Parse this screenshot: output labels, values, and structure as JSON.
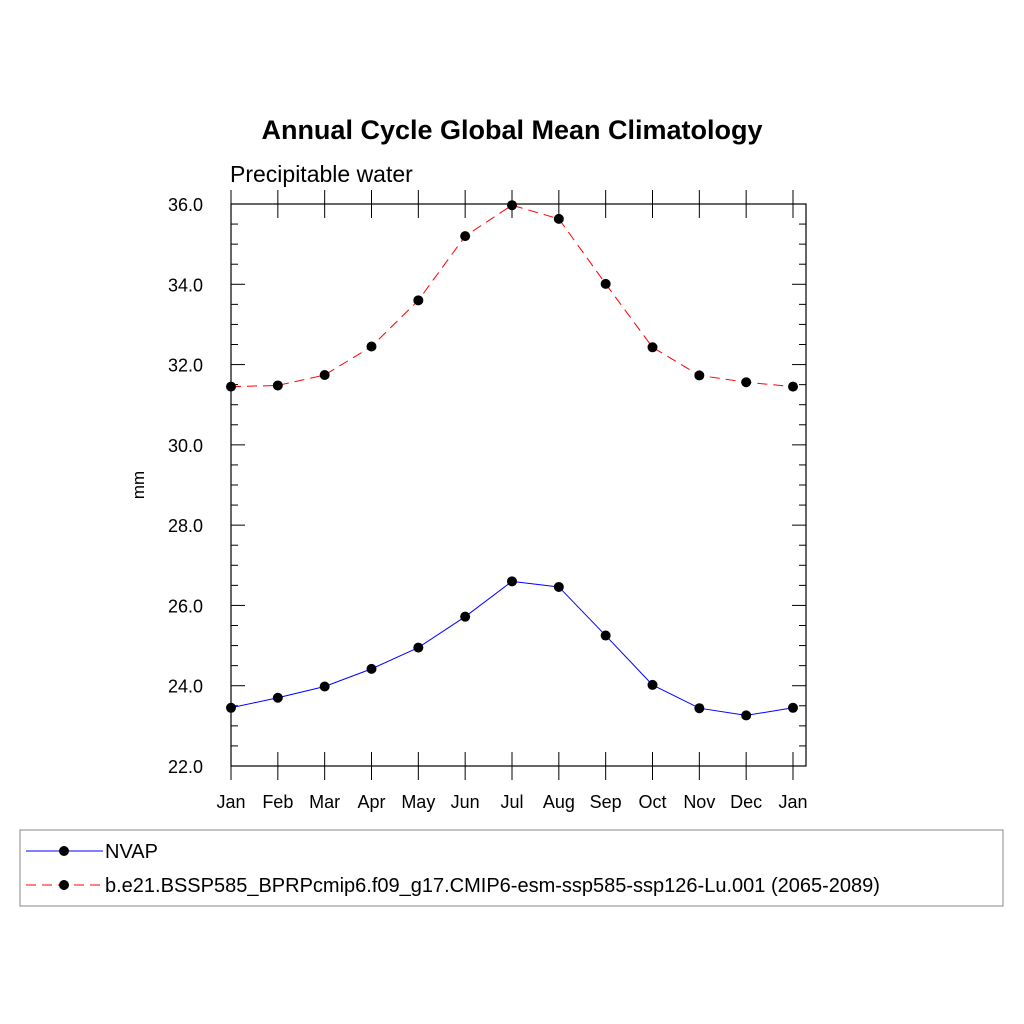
{
  "chart_data": {
    "type": "line",
    "title": "Annual Cycle Global Mean Climatology",
    "subtitle": "Precipitable water",
    "xlabel": "",
    "ylabel": "mm",
    "categories": [
      "Jan",
      "Feb",
      "Mar",
      "Apr",
      "May",
      "Jun",
      "Jul",
      "Aug",
      "Sep",
      "Oct",
      "Nov",
      "Dec",
      "Jan"
    ],
    "ylim": [
      22.0,
      36.0
    ],
    "yticks": [
      "22.0",
      "24.0",
      "26.0",
      "28.0",
      "30.0",
      "32.0",
      "34.0",
      "36.0"
    ],
    "grid": false,
    "legend_position": "bottom",
    "series": [
      {
        "name": "NVAP",
        "color": "#0000ff",
        "line_style": "solid",
        "marker": "filled-circle",
        "values": [
          23.45,
          23.7,
          23.98,
          24.42,
          24.95,
          25.72,
          26.6,
          26.46,
          25.25,
          24.02,
          23.44,
          23.26,
          23.45
        ]
      },
      {
        "name": "b.e21.BSSP585_BPRPcmip6.f09_g17.CMIP6-esm-ssp585-ssp126-Lu.001 (2065-2089)",
        "color": "#ff0000",
        "line_style": "dashed",
        "marker": "filled-circle",
        "values": [
          31.45,
          31.48,
          31.74,
          32.45,
          33.6,
          35.2,
          35.97,
          35.63,
          34.01,
          32.43,
          31.73,
          31.56,
          31.45
        ]
      }
    ]
  }
}
